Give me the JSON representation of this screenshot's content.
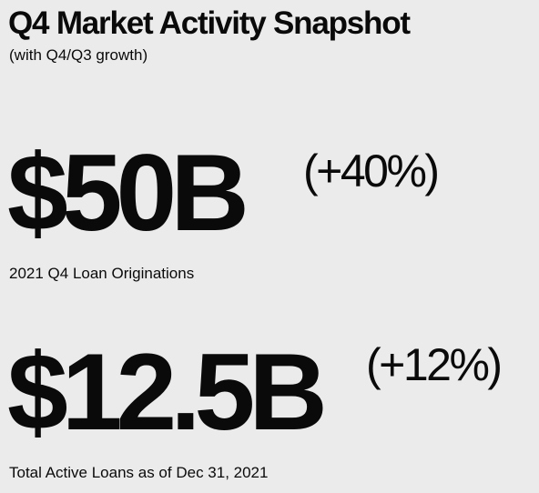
{
  "header": {
    "title": "Q4 Market Activity Snapshot",
    "subtitle": "(with Q4/Q3 growth)"
  },
  "metrics": [
    {
      "value": "$50B",
      "growth": "(+40%)",
      "label": "2021 Q4 Loan Originations"
    },
    {
      "value": "$12.5B",
      "growth": "(+12%)",
      "label": "Total Active Loans as of Dec 31, 2021"
    }
  ]
}
